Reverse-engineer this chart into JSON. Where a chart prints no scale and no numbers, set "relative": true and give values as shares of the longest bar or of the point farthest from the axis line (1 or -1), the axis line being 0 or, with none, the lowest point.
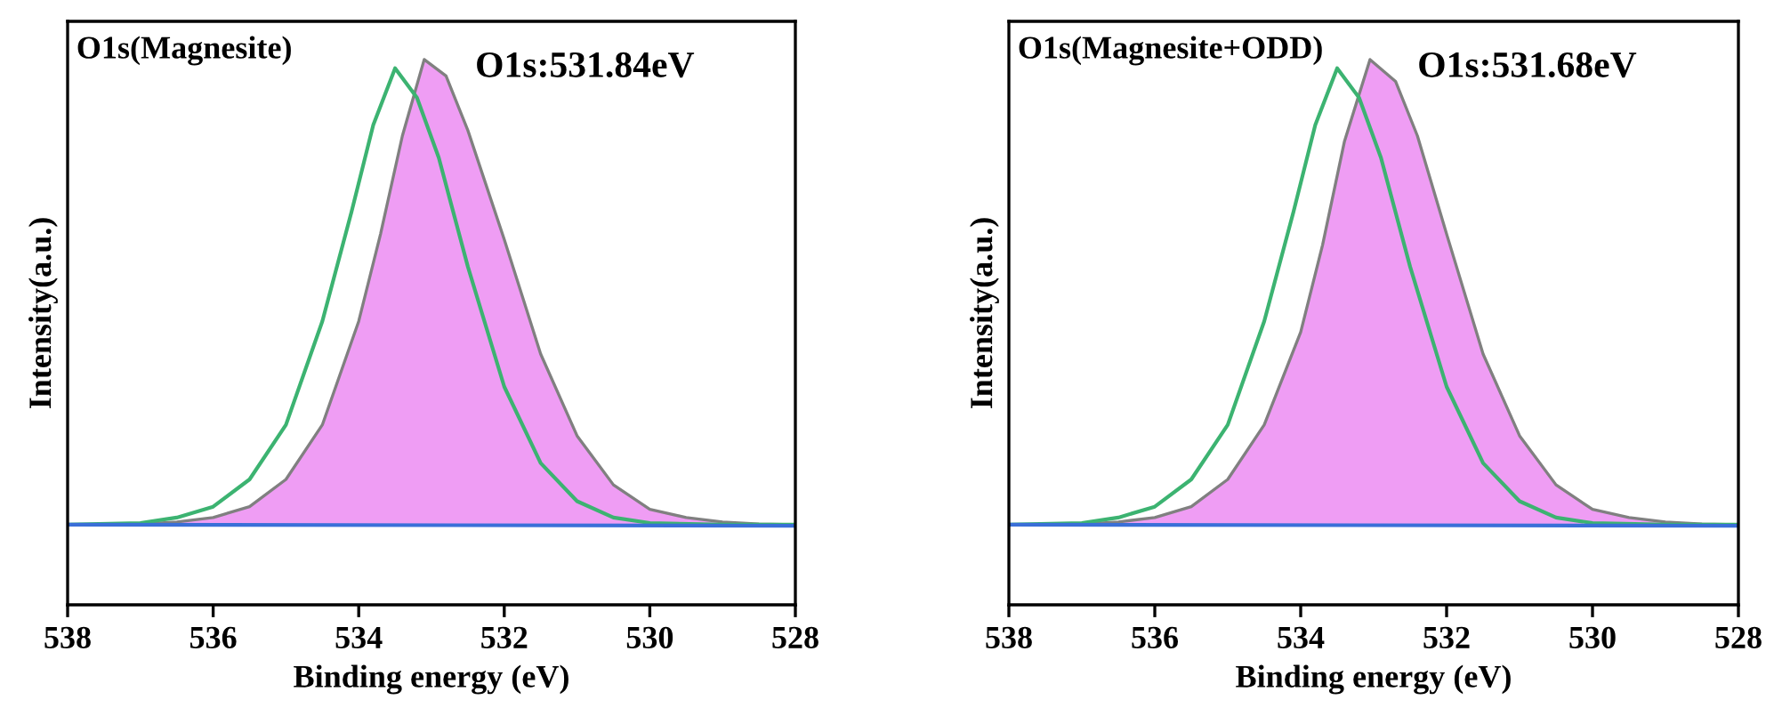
{
  "chart_data": [
    {
      "type": "line",
      "title": "O1s(Magnesite)",
      "xlabel": "Binding energy (eV)",
      "ylabel": "Intensity(a.u.)",
      "annotations": [
        "O1s:531.84eV"
      ],
      "relative": true,
      "xlim": [
        538,
        528
      ],
      "xticks": [
        538,
        536,
        534,
        532,
        530,
        528
      ],
      "tick_labels": "x",
      "grid": false,
      "legend": false,
      "series": [
        {
          "type": "area",
          "color": "#ec8cf2",
          "x": [
            538,
            537,
            536.5,
            536,
            535.5,
            535,
            534.5,
            534,
            533.7,
            533.4,
            533.1,
            532.8,
            532.5,
            532,
            531.5,
            531,
            530.5,
            530,
            529.5,
            529,
            528.5,
            528
          ],
          "values": [
            0.147,
            0.148,
            0.152,
            0.16,
            0.18,
            0.23,
            0.33,
            0.52,
            0.68,
            0.86,
            1.0,
            0.97,
            0.87,
            0.67,
            0.46,
            0.31,
            0.22,
            0.175,
            0.16,
            0.152,
            0.148,
            0.147
          ]
        },
        {
          "color": "#3cb371",
          "x": [
            538,
            537,
            536.5,
            536,
            535.5,
            535,
            534.5,
            534.1,
            533.8,
            533.5,
            533.2,
            532.9,
            532.5,
            532,
            531.5,
            531,
            530.5,
            530,
            529,
            528
          ],
          "values": [
            0.147,
            0.15,
            0.16,
            0.18,
            0.23,
            0.33,
            0.52,
            0.72,
            0.88,
            0.984,
            0.93,
            0.82,
            0.62,
            0.4,
            0.26,
            0.19,
            0.16,
            0.15,
            0.147,
            0.147
          ]
        },
        {
          "color": "#3a6fd8",
          "x": [
            538,
            528
          ],
          "values": [
            0.147,
            0.145
          ]
        }
      ]
    },
    {
      "type": "line",
      "title": "O1s(Magnesite+ODD)",
      "xlabel": "Binding energy (eV)",
      "ylabel": "Intensity(a.u.)",
      "annotations": [
        "O1s:531.68eV"
      ],
      "relative": true,
      "xlim": [
        538,
        528
      ],
      "xticks": [
        538,
        536,
        534,
        532,
        530,
        528
      ],
      "tick_labels": "x",
      "grid": false,
      "legend": false,
      "series": [
        {
          "type": "area",
          "color": "#ec8cf2",
          "x": [
            538,
            537,
            536.5,
            536,
            535.5,
            535,
            534.5,
            534,
            533.7,
            533.4,
            533.05,
            532.7,
            532.4,
            532,
            531.5,
            531,
            530.5,
            530,
            529.5,
            529,
            528.5,
            528
          ],
          "values": [
            0.147,
            0.148,
            0.152,
            0.16,
            0.18,
            0.23,
            0.33,
            0.5,
            0.66,
            0.85,
            1.0,
            0.96,
            0.86,
            0.68,
            0.46,
            0.31,
            0.22,
            0.175,
            0.16,
            0.152,
            0.148,
            0.147
          ]
        },
        {
          "color": "#3cb371",
          "x": [
            538,
            537,
            536.5,
            536,
            535.5,
            535,
            534.5,
            534.1,
            533.8,
            533.5,
            533.2,
            532.9,
            532.5,
            532,
            531.5,
            531,
            530.5,
            530,
            529,
            528
          ],
          "values": [
            0.147,
            0.15,
            0.16,
            0.18,
            0.23,
            0.33,
            0.52,
            0.72,
            0.88,
            0.984,
            0.93,
            0.82,
            0.62,
            0.4,
            0.26,
            0.19,
            0.16,
            0.15,
            0.147,
            0.147
          ]
        },
        {
          "color": "#3a6fd8",
          "x": [
            538,
            528
          ],
          "values": [
            0.147,
            0.145
          ]
        }
      ]
    }
  ]
}
